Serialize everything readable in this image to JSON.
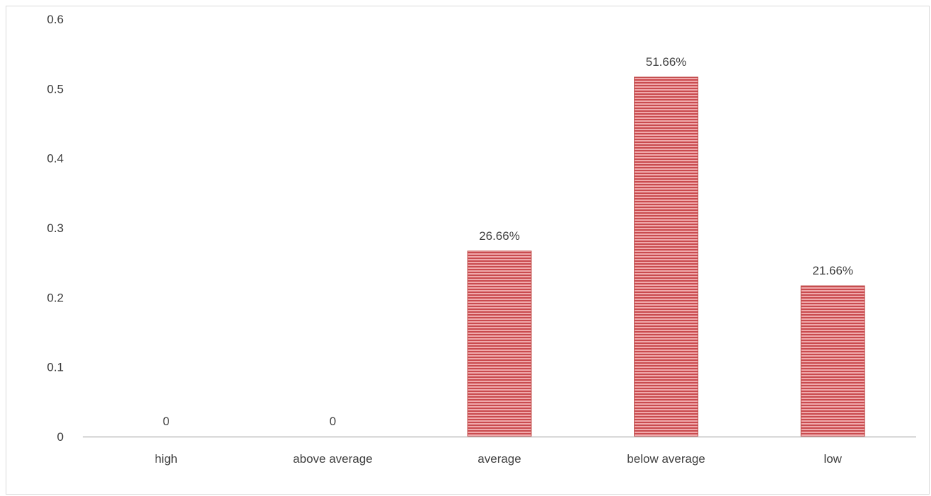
{
  "chart_data": {
    "type": "bar",
    "categories": [
      "high",
      "above average",
      "average",
      "below average",
      "low"
    ],
    "values": [
      0,
      0,
      0.2666,
      0.5166,
      0.2166
    ],
    "data_labels": [
      "0",
      "0",
      "26.66%",
      "51.66%",
      "21.66%"
    ],
    "y_ticks": [
      "0",
      "0.1",
      "0.2",
      "0.3",
      "0.4",
      "0.5",
      "0.6"
    ],
    "ylim": [
      0,
      0.6
    ],
    "title": "",
    "xlabel": "",
    "ylabel": "",
    "grid": false,
    "legend": "none",
    "bar_color": "#e8898c",
    "bar_stripe_color": "#c0504d",
    "axis_color": "#bfbfbf",
    "text_color": "#404040"
  }
}
